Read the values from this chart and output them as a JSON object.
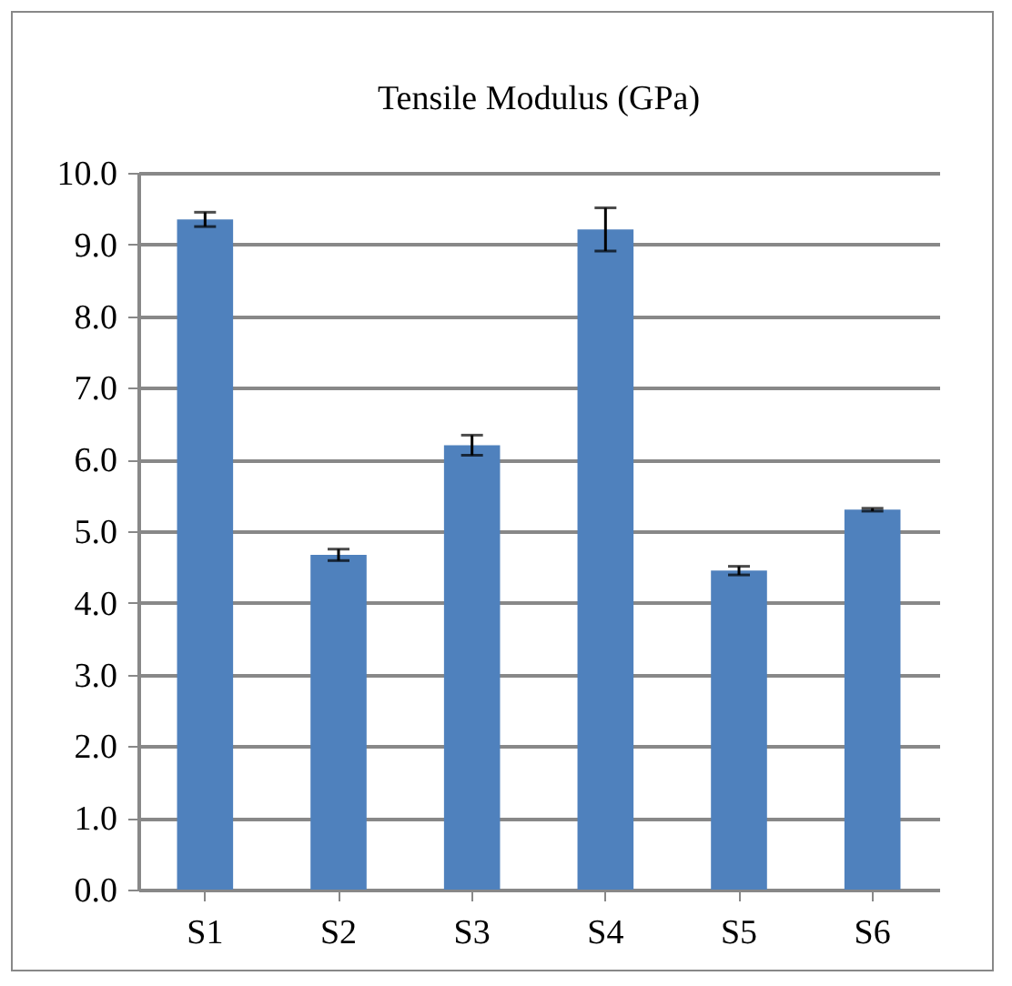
{
  "chart_data": {
    "type": "bar",
    "title": "Tensile Modulus (GPa)",
    "categories": [
      "S1",
      "S2",
      "S3",
      "S4",
      "S5",
      "S6"
    ],
    "values": [
      9.35,
      4.67,
      6.2,
      9.21,
      4.45,
      5.3
    ],
    "errors": [
      0.1,
      0.08,
      0.14,
      0.3,
      0.06,
      0.02
    ],
    "color": "#4f81bd",
    "ylim": [
      0,
      10
    ],
    "yticks": [
      {
        "value": 0,
        "label": "0.0"
      },
      {
        "value": 1,
        "label": "1.0"
      },
      {
        "value": 2,
        "label": "2.0"
      },
      {
        "value": 3,
        "label": "3.0"
      },
      {
        "value": 4,
        "label": "4.0"
      },
      {
        "value": 5,
        "label": "5.0"
      },
      {
        "value": 6,
        "label": "6.0"
      },
      {
        "value": 7,
        "label": "7.0"
      },
      {
        "value": 8,
        "label": "8.0"
      },
      {
        "value": 9,
        "label": "9.0"
      },
      {
        "value": 10,
        "label": "10.0"
      }
    ],
    "grid": "y"
  }
}
